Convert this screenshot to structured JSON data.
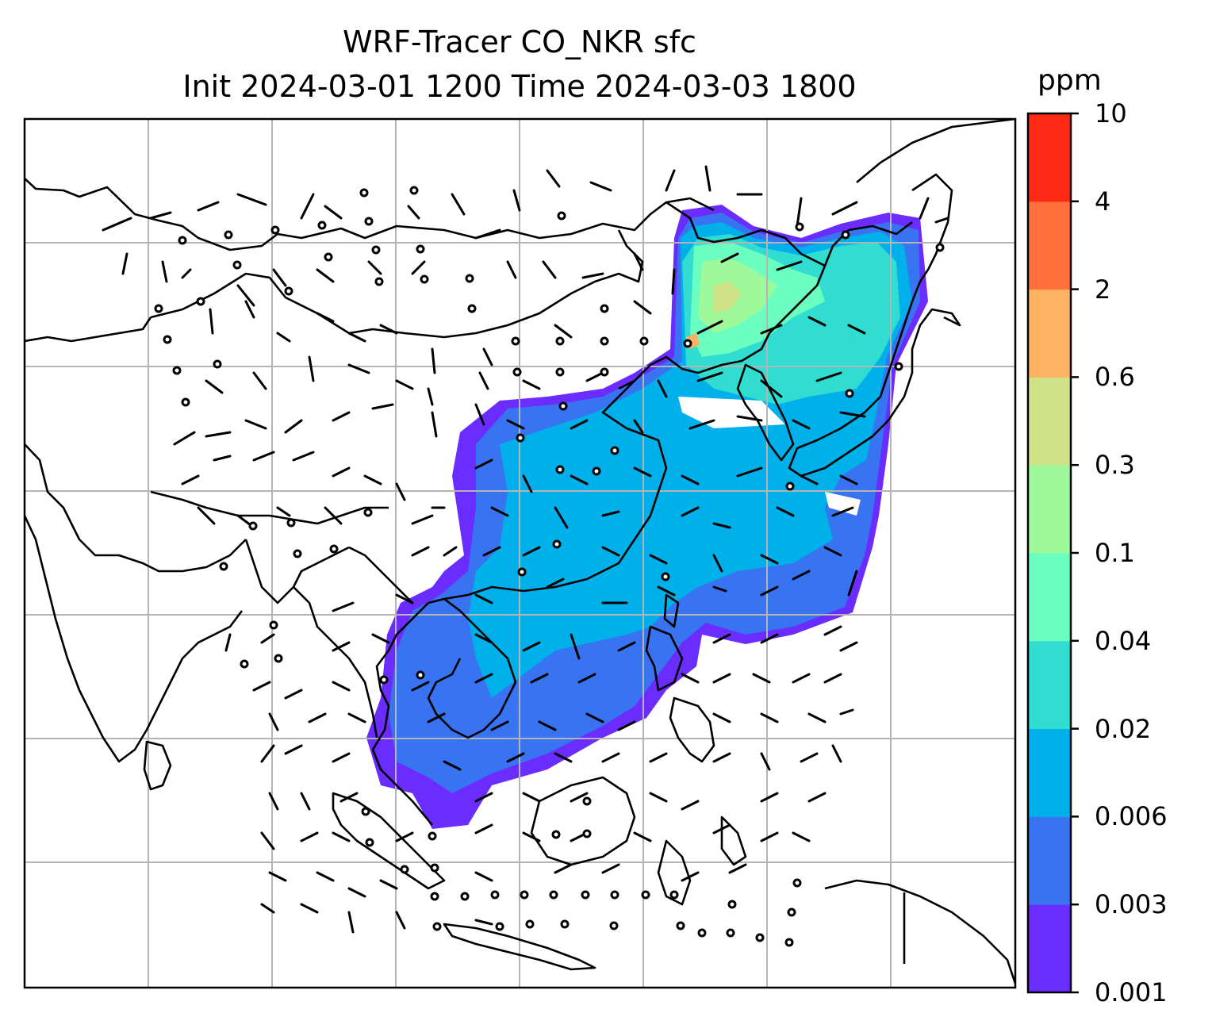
{
  "title_line1": "WRF-Tracer CO_NKR sfc",
  "title_line2": "Init 2024-03-01 1200 Time 2024-03-03 1800",
  "colorbar": {
    "unit": "ppm",
    "levels": [
      "0.001",
      "0.003",
      "0.006",
      "0.02",
      "0.04",
      "0.1",
      "0.3",
      "0.6",
      "2",
      "4",
      "10"
    ],
    "colors": [
      "#6a2cff",
      "#3874f2",
      "#00b0ea",
      "#30ddd0",
      "#6affc0",
      "#9ef99a",
      "#d0e287",
      "#feb262",
      "#ff703c",
      "#ff2a16"
    ]
  }
}
